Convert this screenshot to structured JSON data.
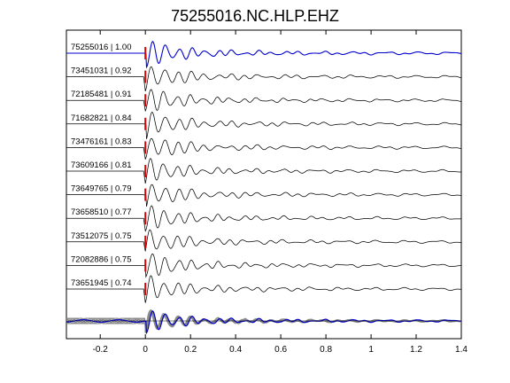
{
  "chart_data": {
    "type": "line",
    "title": "75255016.NC.HLP.EHZ",
    "xlabel": "",
    "ylabel": "",
    "xlim": [
      -0.35,
      1.4
    ],
    "x_ticks": [
      "-0.2",
      "0",
      "0.2",
      "0.4",
      "0.6",
      "0.8",
      "1",
      "1.2",
      "1.4"
    ],
    "x_tick_values": [
      -0.2,
      0,
      0.2,
      0.4,
      0.6,
      0.8,
      1.0,
      1.2,
      1.4
    ],
    "pick_time": 0,
    "grid": false,
    "colors": {
      "reference_trace": "#0000cc",
      "similar_trace": "#000000",
      "overlay_trace": "#888888",
      "pick_marker": "#dd0000"
    },
    "series": [
      {
        "name": "75255016 | 1.00",
        "id": "75255016",
        "correlation": 1.0
      },
      {
        "name": "73451031 | 0.92",
        "id": "73451031",
        "correlation": 0.92
      },
      {
        "name": "72185481 | 0.91",
        "id": "72185481",
        "correlation": 0.91
      },
      {
        "name": "71682821 | 0.84",
        "id": "71682821",
        "correlation": 0.84
      },
      {
        "name": "73476161 | 0.83",
        "id": "73476161",
        "correlation": 0.83
      },
      {
        "name": "73609166 | 0.81",
        "id": "73609166",
        "correlation": 0.81
      },
      {
        "name": "73649765 | 0.79",
        "id": "73649765",
        "correlation": 0.79
      },
      {
        "name": "73658510 | 0.77",
        "id": "73658510",
        "correlation": 0.77
      },
      {
        "name": "73512075 | 0.75",
        "id": "73512075",
        "correlation": 0.75
      },
      {
        "name": "72082886 | 0.75",
        "id": "72082886",
        "correlation": 0.75
      },
      {
        "name": "73651945 | 0.74",
        "id": "73651945",
        "correlation": 0.74
      }
    ],
    "overlay": "all traces superimposed at bottom"
  }
}
